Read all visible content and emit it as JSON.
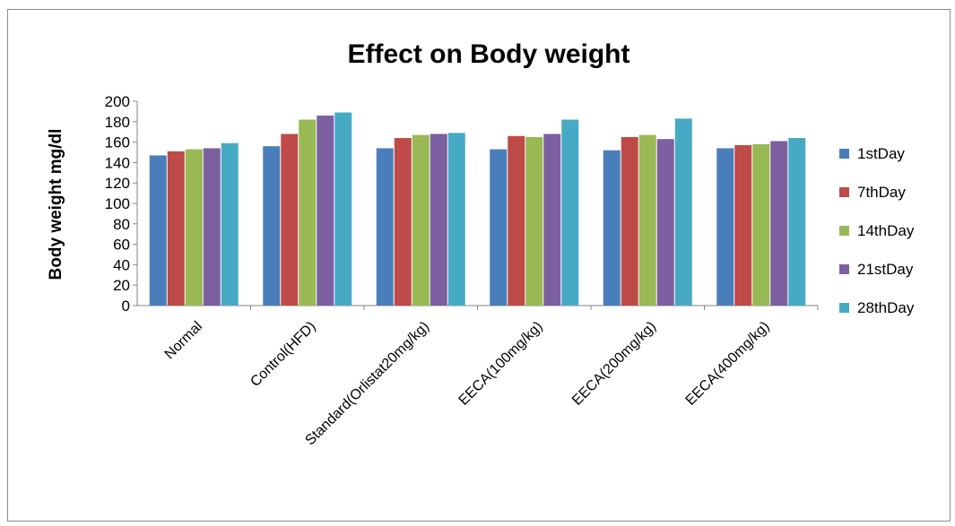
{
  "chart_data": {
    "type": "bar",
    "title": "Effect on Body weight",
    "xlabel": "",
    "ylabel": "Body weight mg/dl",
    "ylim": [
      0,
      200
    ],
    "yticks": [
      "0",
      "20",
      "40",
      "60",
      "80",
      "100",
      "120",
      "140",
      "160",
      "180",
      "200"
    ],
    "grid": false,
    "legend_position": "right",
    "categories": [
      "Normal",
      "Control(HFD)",
      "Standard(Orlistat20mg/kg)",
      "EECA(100mg/kg)",
      "EECA(200mg/kg)",
      "EECA(400mg/kg)"
    ],
    "series": [
      {
        "name": "1stDay",
        "color": "#4a7ebb",
        "values": [
          147,
          156,
          154,
          153,
          152,
          154
        ]
      },
      {
        "name": "7thDay",
        "color": "#be4b48",
        "values": [
          151,
          168,
          164,
          166,
          165,
          157
        ]
      },
      {
        "name": "14thDay",
        "color": "#98b954",
        "values": [
          153,
          182,
          167,
          165,
          167,
          158
        ]
      },
      {
        "name": "21stDay",
        "color": "#7d60a0",
        "values": [
          154,
          186,
          168,
          168,
          163,
          161
        ]
      },
      {
        "name": "28thDay",
        "color": "#46aac5",
        "values": [
          159,
          189,
          169,
          182,
          183,
          164
        ]
      }
    ]
  }
}
